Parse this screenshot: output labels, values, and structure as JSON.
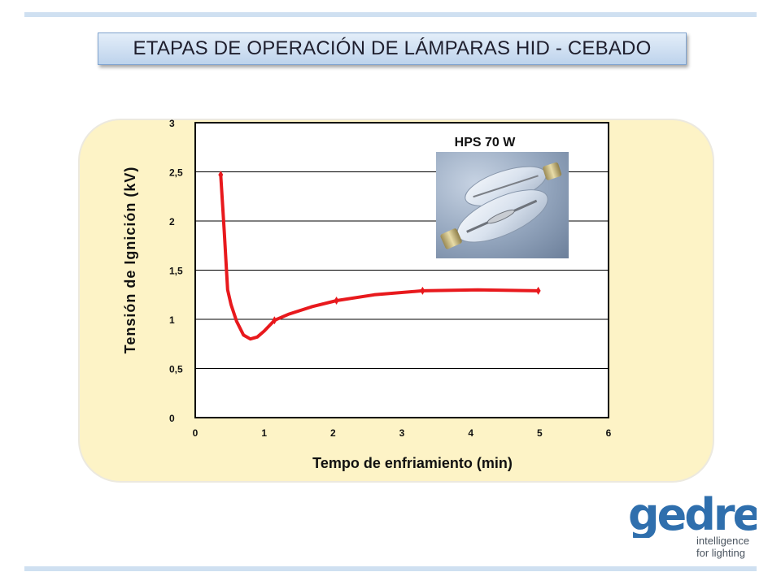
{
  "title": "ETAPAS DE OPERACIÓN DE LÁMPARAS HID - CEBADO",
  "photo_label": "HPS 70 W",
  "logo": {
    "name": "gedre",
    "tagline_1": "intelligence",
    "tagline_2": "for lighting"
  },
  "colors": {
    "series": "#e8191d",
    "panel": "#fdf3c6",
    "title_box": "#c9daf0",
    "logo": "#2f6fad"
  },
  "chart_data": {
    "type": "line",
    "xlabel": "Tempo de enfriamiento (min)",
    "ylabel": "Tensión de Ignición (kV)",
    "xlim": [
      0,
      6
    ],
    "ylim": [
      0,
      3
    ],
    "x_ticks": [
      "0",
      "1",
      "2",
      "3",
      "4",
      "5",
      "6"
    ],
    "y_ticks": [
      "0",
      "0,5",
      "1",
      "1,5",
      "2",
      "2,5",
      "3"
    ],
    "grid": "horizontal",
    "series": [
      {
        "values": [
          {
            "x": 0.37,
            "y": 2.47
          },
          {
            "x": 0.42,
            "y": 1.9
          },
          {
            "x": 0.47,
            "y": 1.3
          },
          {
            "x": 0.52,
            "y": 1.15
          },
          {
            "x": 0.6,
            "y": 0.98
          },
          {
            "x": 0.7,
            "y": 0.84
          },
          {
            "x": 0.8,
            "y": 0.8
          },
          {
            "x": 0.9,
            "y": 0.82
          },
          {
            "x": 1.0,
            "y": 0.88
          },
          {
            "x": 1.15,
            "y": 0.99
          },
          {
            "x": 1.35,
            "y": 1.05
          },
          {
            "x": 1.7,
            "y": 1.13
          },
          {
            "x": 2.05,
            "y": 1.19
          },
          {
            "x": 2.6,
            "y": 1.25
          },
          {
            "x": 3.3,
            "y": 1.29
          },
          {
            "x": 4.1,
            "y": 1.3
          },
          {
            "x": 4.98,
            "y": 1.29
          }
        ],
        "markers": [
          {
            "x": 0.37,
            "y": 2.47
          },
          {
            "x": 1.15,
            "y": 0.99
          },
          {
            "x": 2.05,
            "y": 1.19
          },
          {
            "x": 3.3,
            "y": 1.29
          },
          {
            "x": 4.98,
            "y": 1.29
          }
        ]
      }
    ]
  }
}
